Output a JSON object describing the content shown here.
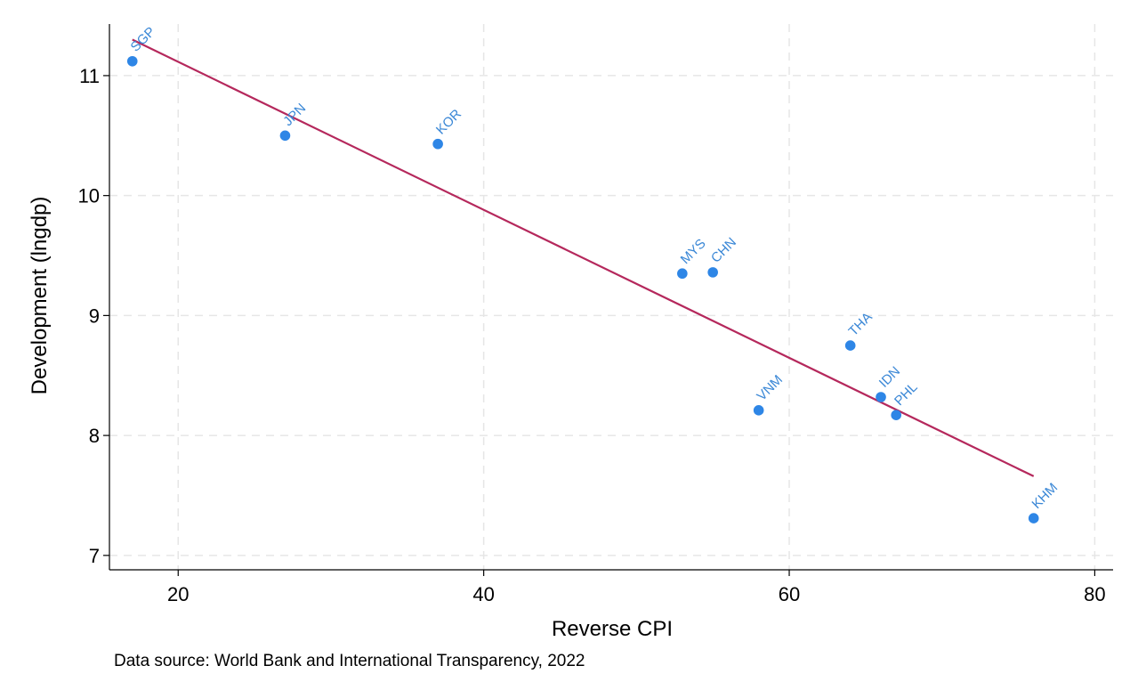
{
  "chart_data": {
    "type": "scatter",
    "title": "",
    "xlabel": "Reverse CPI",
    "ylabel": "Development (lngdp)",
    "note": "Data source: World Bank and International Transparency, 2022",
    "xlim": [
      15.5,
      81.2
    ],
    "ylim": [
      6.88,
      11.43
    ],
    "xticks": [
      20,
      40,
      60,
      80
    ],
    "yticks": [
      7,
      8,
      9,
      10,
      11
    ],
    "grid": true,
    "marker_color": "#2e86e6",
    "label_color": "#3a87d6",
    "fit_color": "#b5285c",
    "points": [
      {
        "label": "SGP",
        "x": 17,
        "y": 11.12
      },
      {
        "label": "JPN",
        "x": 27,
        "y": 10.5
      },
      {
        "label": "KOR",
        "x": 37,
        "y": 10.43
      },
      {
        "label": "MYS",
        "x": 53,
        "y": 9.35
      },
      {
        "label": "CHN",
        "x": 55,
        "y": 9.36
      },
      {
        "label": "THA",
        "x": 64,
        "y": 8.75
      },
      {
        "label": "IDN",
        "x": 66,
        "y": 8.32
      },
      {
        "label": "PHL",
        "x": 67,
        "y": 8.17
      },
      {
        "label": "VNM",
        "x": 58,
        "y": 8.21
      },
      {
        "label": "KHM",
        "x": 76,
        "y": 7.31
      }
    ],
    "fit_line": {
      "x": [
        17,
        76
      ],
      "y": [
        11.3,
        7.66
      ]
    }
  }
}
